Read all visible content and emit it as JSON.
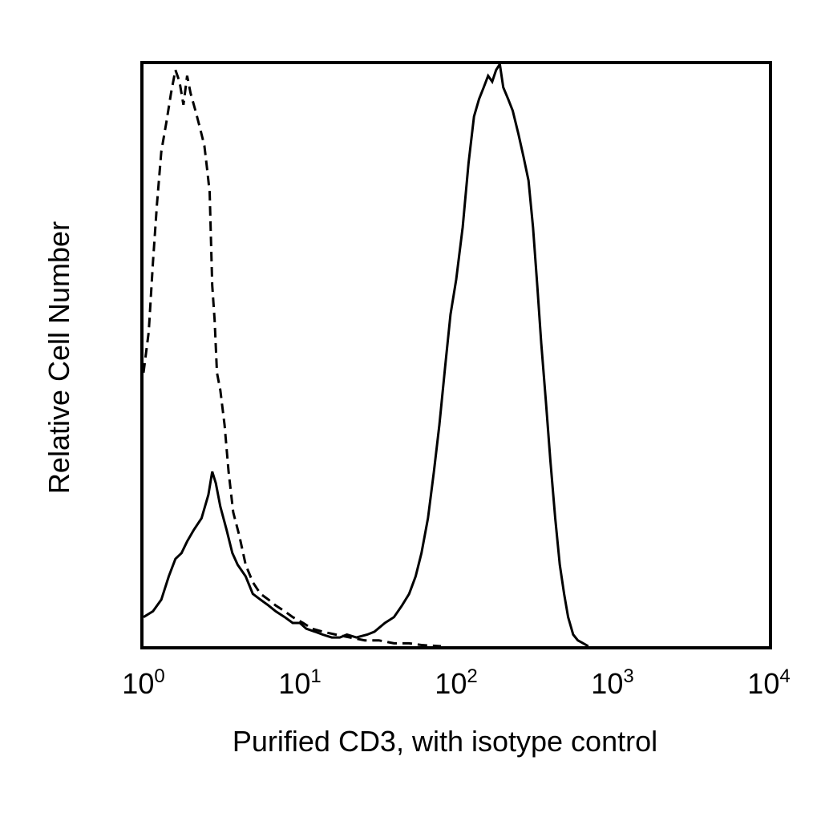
{
  "chart_data": {
    "type": "line",
    "title": "",
    "xlabel": "Purified CD3, with isotype control",
    "ylabel": "Relative Cell Number",
    "xscale": "log",
    "xlim": [
      1,
      10000
    ],
    "ylim": [
      0,
      100
    ],
    "grid": false,
    "x_ticks": [
      {
        "value": 1,
        "base": "10",
        "exp": "0"
      },
      {
        "value": 10,
        "base": "10",
        "exp": "1"
      },
      {
        "value": 100,
        "base": "10",
        "exp": "2"
      },
      {
        "value": 1000,
        "base": "10",
        "exp": "3"
      },
      {
        "value": 10000,
        "base": "10",
        "exp": "4"
      }
    ],
    "series": [
      {
        "style": "dashed",
        "color": "#000000",
        "points": [
          [
            1.0,
            47
          ],
          [
            1.08,
            54
          ],
          [
            1.15,
            66
          ],
          [
            1.22,
            76
          ],
          [
            1.3,
            85
          ],
          [
            1.4,
            90
          ],
          [
            1.5,
            95
          ],
          [
            1.6,
            99
          ],
          [
            1.7,
            97
          ],
          [
            1.8,
            93
          ],
          [
            1.9,
            98
          ],
          [
            2.0,
            95
          ],
          [
            2.15,
            92
          ],
          [
            2.3,
            89
          ],
          [
            2.45,
            86
          ],
          [
            2.55,
            82
          ],
          [
            2.65,
            78
          ],
          [
            2.75,
            62
          ],
          [
            2.85,
            56
          ],
          [
            2.95,
            47
          ],
          [
            3.1,
            44
          ],
          [
            3.3,
            38
          ],
          [
            3.5,
            30
          ],
          [
            3.75,
            23
          ],
          [
            4.1,
            19
          ],
          [
            4.5,
            14
          ],
          [
            5.0,
            11
          ],
          [
            5.6,
            9
          ],
          [
            6.3,
            8
          ],
          [
            7.0,
            7
          ],
          [
            8.0,
            6
          ],
          [
            9.0,
            5
          ],
          [
            10.5,
            4
          ],
          [
            12,
            3
          ],
          [
            14,
            2.5
          ],
          [
            17,
            2
          ],
          [
            21,
            1.5
          ],
          [
            26,
            1
          ],
          [
            32,
            1
          ],
          [
            40,
            0.5
          ],
          [
            50,
            0.5
          ],
          [
            60,
            0.2
          ],
          [
            80,
            0
          ]
        ]
      },
      {
        "style": "solid",
        "color": "#000000",
        "points": [
          [
            1.0,
            5
          ],
          [
            1.15,
            6
          ],
          [
            1.3,
            8
          ],
          [
            1.45,
            12
          ],
          [
            1.6,
            15
          ],
          [
            1.75,
            16
          ],
          [
            1.9,
            18
          ],
          [
            2.1,
            20
          ],
          [
            2.35,
            22
          ],
          [
            2.6,
            26
          ],
          [
            2.75,
            30
          ],
          [
            2.9,
            28
          ],
          [
            3.1,
            24
          ],
          [
            3.4,
            20
          ],
          [
            3.7,
            16
          ],
          [
            4.0,
            14
          ],
          [
            4.5,
            12
          ],
          [
            5.0,
            9
          ],
          [
            5.6,
            8
          ],
          [
            6.3,
            7
          ],
          [
            7.0,
            6
          ],
          [
            8.0,
            5
          ],
          [
            9.0,
            4
          ],
          [
            10,
            4
          ],
          [
            11,
            3
          ],
          [
            12.5,
            2.5
          ],
          [
            14,
            2
          ],
          [
            16,
            1.5
          ],
          [
            18,
            1.5
          ],
          [
            20,
            2
          ],
          [
            23,
            1.5
          ],
          [
            27,
            2
          ],
          [
            30,
            2.5
          ],
          [
            35,
            4
          ],
          [
            40,
            5
          ],
          [
            45,
            7
          ],
          [
            50,
            9
          ],
          [
            55,
            12
          ],
          [
            60,
            16
          ],
          [
            66,
            22
          ],
          [
            72,
            30
          ],
          [
            78,
            38
          ],
          [
            85,
            48
          ],
          [
            92,
            57
          ],
          [
            100,
            63
          ],
          [
            110,
            72
          ],
          [
            120,
            83
          ],
          [
            130,
            91
          ],
          [
            140,
            94
          ],
          [
            150,
            96
          ],
          [
            160,
            98
          ],
          [
            170,
            97
          ],
          [
            180,
            99
          ],
          [
            190,
            100
          ],
          [
            200,
            96
          ],
          [
            215,
            94
          ],
          [
            230,
            92
          ],
          [
            250,
            88
          ],
          [
            270,
            84
          ],
          [
            290,
            80
          ],
          [
            310,
            72
          ],
          [
            330,
            62
          ],
          [
            350,
            52
          ],
          [
            375,
            42
          ],
          [
            400,
            32
          ],
          [
            430,
            22
          ],
          [
            460,
            14
          ],
          [
            490,
            9
          ],
          [
            520,
            5
          ],
          [
            560,
            2
          ],
          [
            600,
            1
          ],
          [
            650,
            0.5
          ],
          [
            700,
            0
          ]
        ]
      }
    ]
  }
}
